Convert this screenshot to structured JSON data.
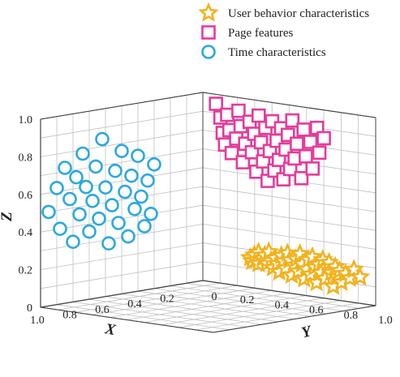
{
  "chart_data": {
    "type": "scatter",
    "projection": "3d",
    "grid": true,
    "legend_position": "top-right",
    "xlabel": "X",
    "ylabel": "Y",
    "zlabel": "Z",
    "xlim": [
      0,
      1.0
    ],
    "ylim": [
      0,
      1.0
    ],
    "zlim": [
      0,
      1.0
    ],
    "x_ticks": [
      "0.2",
      "0.4",
      "0.6",
      "0.8",
      "1.0"
    ],
    "y_ticks": [
      "0.2",
      "0.4",
      "0.6",
      "0.8",
      "1.0"
    ],
    "z_ticks": [
      "0.2",
      "0.4",
      "0.6",
      "0.8",
      "1.0"
    ],
    "origin_label": "0",
    "series": [
      {
        "name": "User behavior characteristics",
        "marker": "star",
        "color": "#f2b21d",
        "points": [
          [
            0.02,
            0.45
          ],
          [
            0.03,
            0.4
          ],
          [
            0.04,
            0.5
          ],
          [
            0.05,
            0.43
          ],
          [
            0.06,
            0.55
          ],
          [
            0.06,
            0.38
          ],
          [
            0.08,
            0.47
          ],
          [
            0.09,
            0.52
          ],
          [
            0.1,
            0.4
          ],
          [
            0.11,
            0.58
          ],
          [
            0.12,
            0.45
          ],
          [
            0.13,
            0.35
          ],
          [
            0.14,
            0.5
          ],
          [
            0.15,
            0.42
          ],
          [
            0.16,
            0.3
          ],
          [
            0.17,
            0.55
          ],
          [
            0.18,
            0.47
          ],
          [
            0.19,
            0.37
          ],
          [
            0.2,
            0.6
          ],
          [
            0.21,
            0.5
          ],
          [
            0.22,
            0.28
          ],
          [
            0.23,
            0.43
          ],
          [
            0.24,
            0.53
          ],
          [
            0.25,
            0.35
          ],
          [
            0.26,
            0.62
          ],
          [
            0.27,
            0.47
          ],
          [
            0.28,
            0.25
          ],
          [
            0.29,
            0.4
          ],
          [
            0.3,
            0.55
          ],
          [
            0.31,
            0.33
          ],
          [
            0.32,
            0.6
          ],
          [
            0.33,
            0.45
          ],
          [
            0.34,
            0.22
          ],
          [
            0.35,
            0.5
          ],
          [
            0.36,
            0.38
          ],
          [
            0.37,
            0.58
          ],
          [
            0.38,
            0.3
          ],
          [
            0.39,
            0.47
          ],
          [
            0.4,
            0.55
          ],
          [
            0.41,
            0.4
          ],
          [
            0.42,
            0.2
          ],
          [
            0.43,
            0.5
          ],
          [
            0.44,
            0.35
          ],
          [
            0.45,
            0.45
          ],
          [
            0.46,
            0.28
          ],
          [
            0.48,
            0.42
          ],
          [
            0.5,
            0.36
          ],
          [
            0.52,
            0.5
          ],
          [
            0.55,
            0.4
          ]
        ]
      },
      {
        "name": "Page features",
        "marker": "square",
        "color": "#e63a9b",
        "points": [
          [
            0.02,
            0.95
          ],
          [
            0.04,
            0.88
          ],
          [
            0.05,
            0.8
          ],
          [
            0.06,
            0.74
          ],
          [
            0.07,
            0.9
          ],
          [
            0.08,
            0.82
          ],
          [
            0.09,
            0.7
          ],
          [
            0.11,
            0.78
          ],
          [
            0.12,
            0.93
          ],
          [
            0.13,
            0.85
          ],
          [
            0.14,
            0.66
          ],
          [
            0.15,
            0.76
          ],
          [
            0.17,
            0.88
          ],
          [
            0.18,
            0.72
          ],
          [
            0.19,
            0.82
          ],
          [
            0.2,
            0.62
          ],
          [
            0.21,
            0.92
          ],
          [
            0.22,
            0.78
          ],
          [
            0.23,
            0.68
          ],
          [
            0.24,
            0.86
          ],
          [
            0.25,
            0.58
          ],
          [
            0.26,
            0.74
          ],
          [
            0.27,
            0.9
          ],
          [
            0.28,
            0.64
          ],
          [
            0.29,
            0.8
          ],
          [
            0.3,
            0.7
          ],
          [
            0.31,
            0.87
          ],
          [
            0.32,
            0.6
          ],
          [
            0.33,
            0.76
          ],
          [
            0.34,
            0.84
          ],
          [
            0.35,
            0.66
          ],
          [
            0.36,
            0.92
          ],
          [
            0.37,
            0.72
          ],
          [
            0.38,
            0.8
          ],
          [
            0.4,
            0.62
          ],
          [
            0.41,
            0.88
          ],
          [
            0.42,
            0.74
          ],
          [
            0.44,
            0.82
          ],
          [
            0.45,
            0.68
          ],
          [
            0.47,
            0.9
          ],
          [
            0.48,
            0.77
          ],
          [
            0.5,
            0.85
          ]
        ]
      },
      {
        "name": "Time characteristics",
        "marker": "circle",
        "color": "#2aa8df",
        "points": [
          [
            0.95,
            0.5
          ],
          [
            0.9,
            0.62
          ],
          [
            0.88,
            0.4
          ],
          [
            0.85,
            0.72
          ],
          [
            0.82,
            0.55
          ],
          [
            0.8,
            0.32
          ],
          [
            0.78,
            0.66
          ],
          [
            0.76,
            0.46
          ],
          [
            0.74,
            0.78
          ],
          [
            0.72,
            0.6
          ],
          [
            0.7,
            0.36
          ],
          [
            0.68,
            0.52
          ],
          [
            0.66,
            0.7
          ],
          [
            0.64,
            0.42
          ],
          [
            0.62,
            0.84
          ],
          [
            0.6,
            0.58
          ],
          [
            0.58,
            0.28
          ],
          [
            0.56,
            0.48
          ],
          [
            0.54,
            0.66
          ],
          [
            0.52,
            0.38
          ],
          [
            0.5,
            0.76
          ],
          [
            0.48,
            0.54
          ],
          [
            0.46,
            0.3
          ],
          [
            0.44,
            0.62
          ],
          [
            0.42,
            0.44
          ],
          [
            0.4,
            0.72
          ],
          [
            0.38,
            0.5
          ],
          [
            0.36,
            0.34
          ],
          [
            0.34,
            0.58
          ],
          [
            0.32,
            0.4
          ],
          [
            0.3,
            0.66
          ]
        ]
      }
    ]
  }
}
